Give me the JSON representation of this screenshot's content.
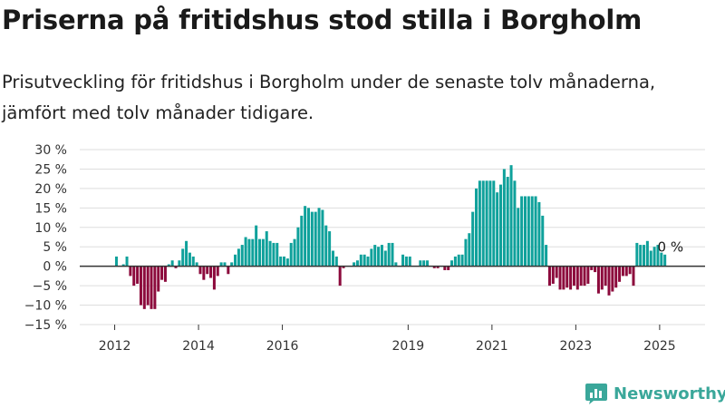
{
  "title": "Priserna på fritidshus stod stilla i Borgholm",
  "subtitle": "Prisutveckling för fritidshus i Borgholm under de senaste tolv månaderna, jämfört med tolv månader tidigare.",
  "brand": {
    "name": "Newsworthy",
    "icon": "bar-chart-logo-icon"
  },
  "colors": {
    "positive": "#0fa19b",
    "negative": "#8c0a3c",
    "grid": "#dddddd",
    "axis": "#333333"
  },
  "chart_data": {
    "type": "bar",
    "y_unit": "%",
    "ylim": [
      -15,
      30
    ],
    "yticks": [
      30,
      25,
      20,
      15,
      10,
      5,
      0,
      -5,
      -10,
      -15
    ],
    "ytick_labels": [
      "30 %",
      "25 %",
      "20 %",
      "15 %",
      "10 %",
      "5 %",
      "0 %",
      "−5 %",
      "−10 %",
      "−15 %"
    ],
    "xlim": [
      "2011-03",
      "2026-02"
    ],
    "xticks": [
      "2012",
      "2014",
      "2016",
      "2019",
      "2021",
      "2023",
      "2025"
    ],
    "grid": true,
    "end_label": "0 %",
    "start_month": "2012-01",
    "values": [
      2.5,
      0,
      0.5,
      2.5,
      -2.5,
      -5,
      -4.5,
      -10,
      -11,
      -10,
      -11,
      -11,
      -6.5,
      -3.5,
      -4,
      0.5,
      1.5,
      -0.5,
      1.5,
      4.5,
      6.5,
      3.5,
      2.5,
      1,
      -2,
      -3.5,
      -2,
      -3,
      -6,
      -2.5,
      1,
      1,
      -2,
      1,
      3,
      4.5,
      5.5,
      7.5,
      7,
      7,
      10.5,
      7,
      7,
      9,
      6.5,
      6,
      6,
      2.5,
      2.5,
      2,
      6,
      7,
      10,
      13,
      15.5,
      15,
      14,
      14,
      15,
      14.5,
      10.5,
      9,
      4,
      2.5,
      -5,
      -0.5,
      0,
      0,
      1,
      1.5,
      3,
      3,
      2.5,
      4.5,
      5.5,
      5,
      5.5,
      4,
      6,
      6,
      1,
      0,
      3,
      2.5,
      2.5,
      0,
      0,
      1.5,
      1.5,
      1.5,
      0,
      -0.5,
      -0.5,
      0,
      -1,
      -1,
      1.5,
      2.5,
      3,
      3,
      7,
      8.5,
      14,
      20,
      22,
      22,
      22,
      22,
      22,
      19,
      21,
      25,
      23,
      26,
      22,
      15,
      18,
      18,
      18,
      18,
      18,
      16.5,
      13,
      5.5,
      -5,
      -4.5,
      -3,
      -6,
      -6,
      -5.5,
      -6,
      -5,
      -6,
      -5,
      -5,
      -4.5,
      -1,
      -1.5,
      -7,
      -6,
      -5,
      -7.5,
      -6.5,
      -5.5,
      -4,
      -2.5,
      -2.5,
      -2,
      -5,
      6,
      5.5,
      5.5,
      6.5,
      4,
      5,
      5.5,
      3.5,
      3,
      0
    ]
  }
}
